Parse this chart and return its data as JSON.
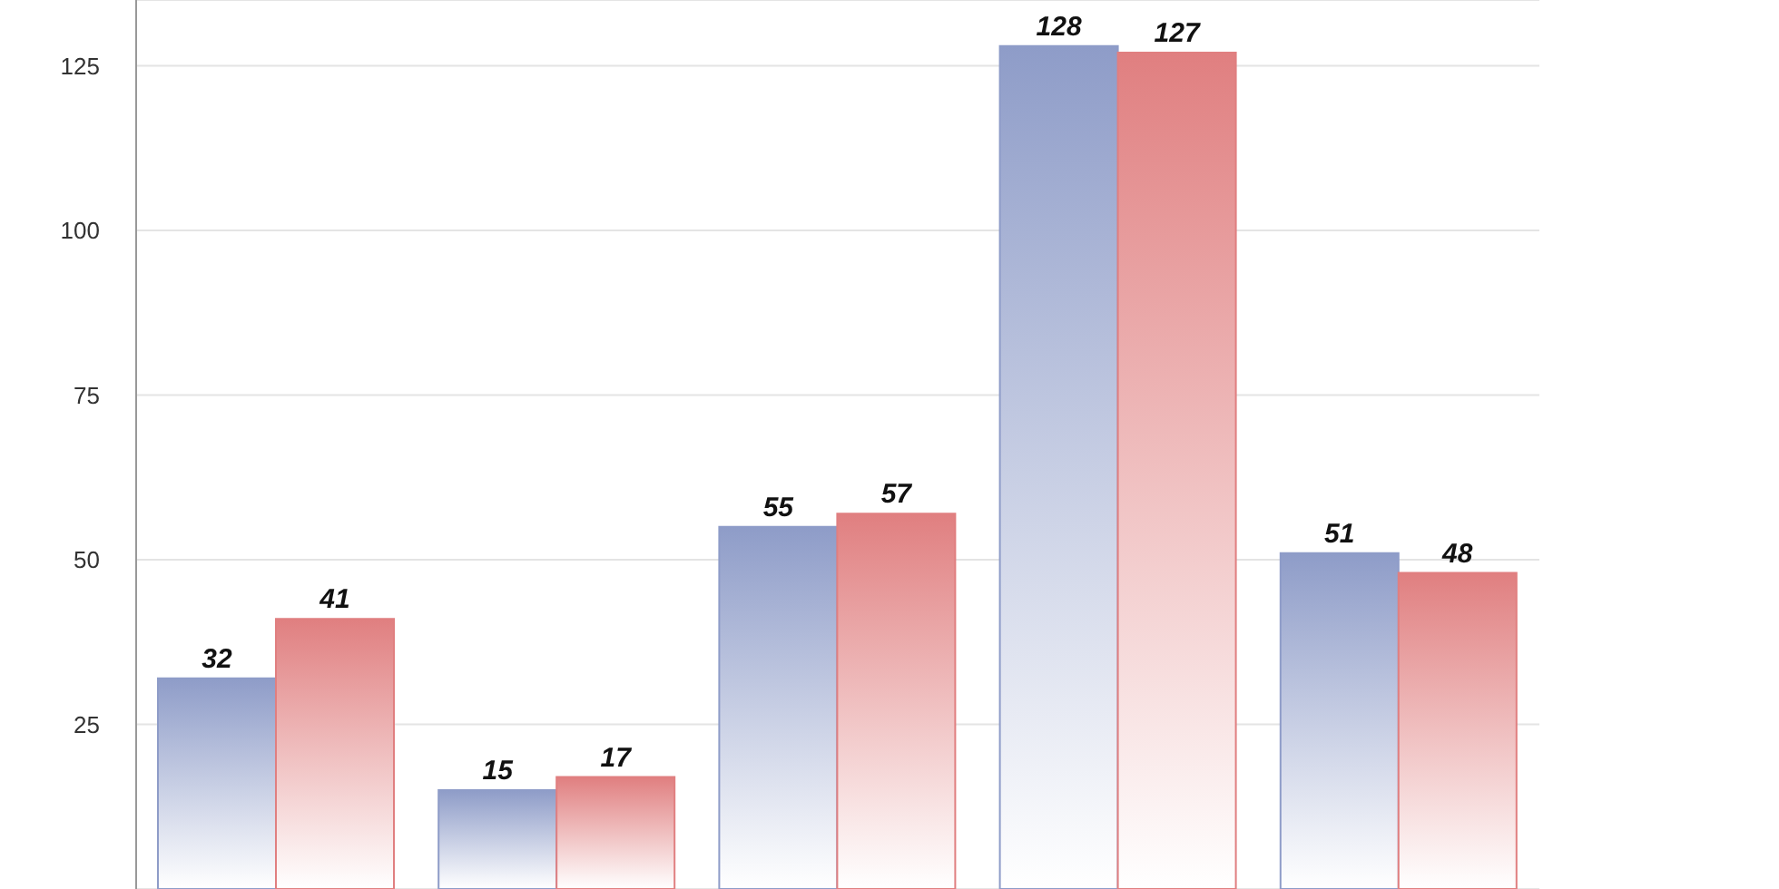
{
  "chart_data": {
    "type": "bar",
    "categories": [
      null,
      null,
      null,
      null,
      null
    ],
    "series": [
      {
        "color": "#8e9cc8",
        "values": [
          32,
          15,
          55,
          128,
          51
        ]
      },
      {
        "color": "#e07f80",
        "values": [
          41,
          17,
          57,
          127,
          48
        ]
      }
    ],
    "ylim": [
      0,
      135
    ],
    "yticks": [
      25,
      50,
      75,
      100,
      125
    ],
    "grid": "y",
    "tick_labels": "y",
    "data_labels": true
  }
}
